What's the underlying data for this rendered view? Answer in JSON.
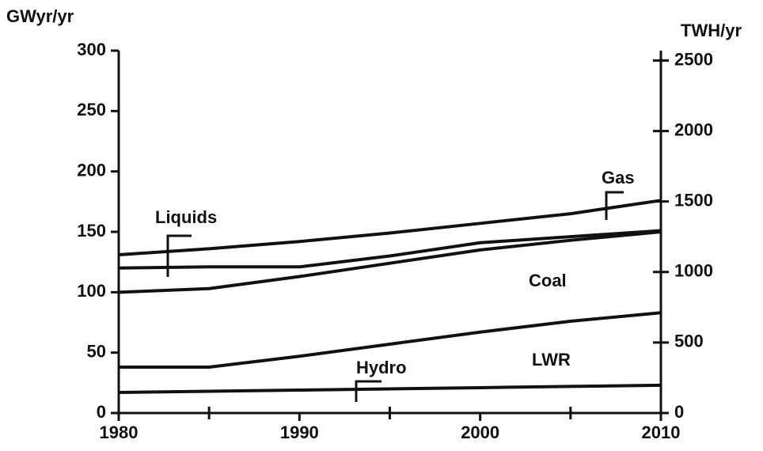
{
  "chart_data": {
    "type": "line",
    "y_label": "GWyr/yr",
    "y2_label": "TWH/yr",
    "x": [
      1980,
      1985,
      1990,
      1995,
      2000,
      2005,
      2010
    ],
    "series": [
      {
        "name": "Hydro",
        "color": "#111111",
        "values": [
          17,
          18,
          19,
          20,
          21,
          22,
          23
        ]
      },
      {
        "name": "LWR",
        "color": "#111111",
        "values": [
          38,
          38,
          47,
          57,
          67,
          76,
          83
        ]
      },
      {
        "name": "Coal",
        "color": "#111111",
        "values": [
          100,
          103,
          113,
          124,
          135,
          143,
          150
        ]
      },
      {
        "name": "Liquids",
        "color": "#111111",
        "values": [
          120,
          121,
          121,
          130,
          141,
          146,
          151
        ]
      },
      {
        "name": "Gas",
        "color": "#111111",
        "values": [
          131,
          136,
          142,
          149,
          157,
          165,
          176
        ]
      }
    ],
    "xlim": [
      1980,
      2010
    ],
    "xticks": [
      1980,
      1990,
      2000,
      2010
    ],
    "minor_xticks": [
      1985,
      1995,
      2005
    ],
    "ylim": [
      0,
      300
    ],
    "yticks": [
      0,
      50,
      100,
      150,
      200,
      250,
      300
    ],
    "y2lim": [
      0,
      2570
    ],
    "y2ticks": [
      0,
      500,
      1000,
      1500,
      2000,
      2500
    ]
  }
}
